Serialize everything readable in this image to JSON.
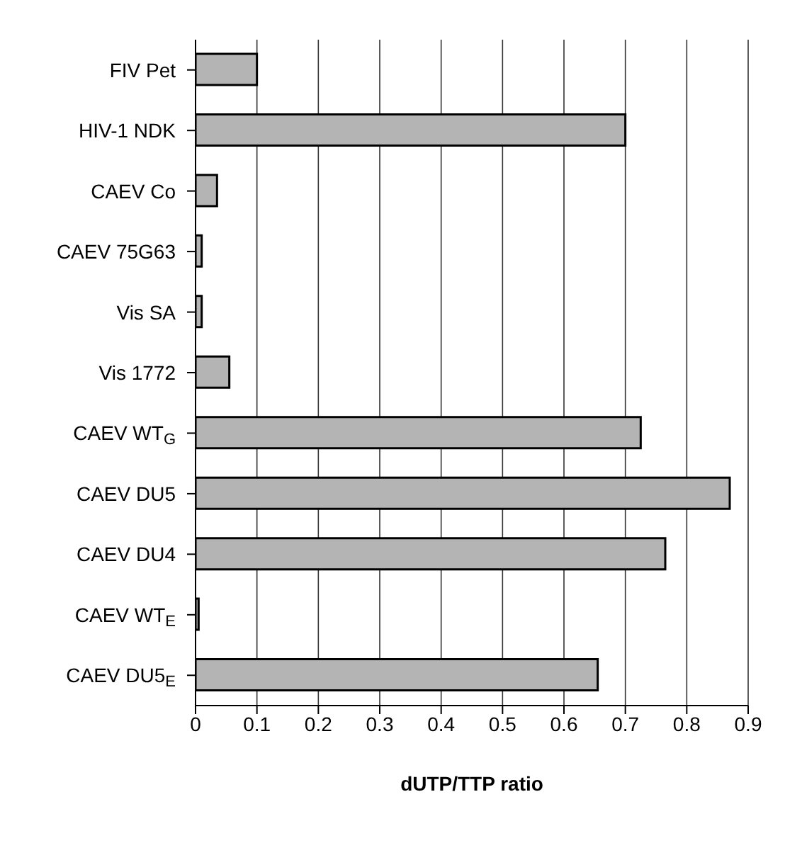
{
  "chart_data": {
    "type": "bar",
    "orientation": "horizontal",
    "xlabel": "dUTP/TTP    ratio",
    "categories": [
      "FIV Pet",
      "HIV-1  NDK",
      "CAEV Co",
      "CAEV 75G63",
      "Vis SA",
      "Vis  1772",
      "CAEV WT$_{G}$",
      "CAEV DU5",
      "CAEV  DU4",
      "CAEV WT$_{E}$",
      "CAEV DU5$_{E}$"
    ],
    "values": [
      0.1,
      0.7,
      0.035,
      0.01,
      0.01,
      0.055,
      0.725,
      0.87,
      0.765,
      0.005,
      0.655
    ],
    "color": "#b4b4b4",
    "xlim": [
      0,
      0.9
    ],
    "xticks": [
      0,
      0.1,
      0.2,
      0.3,
      0.4,
      0.5,
      0.6,
      0.7,
      0.8,
      0.9
    ],
    "grid": "x"
  }
}
